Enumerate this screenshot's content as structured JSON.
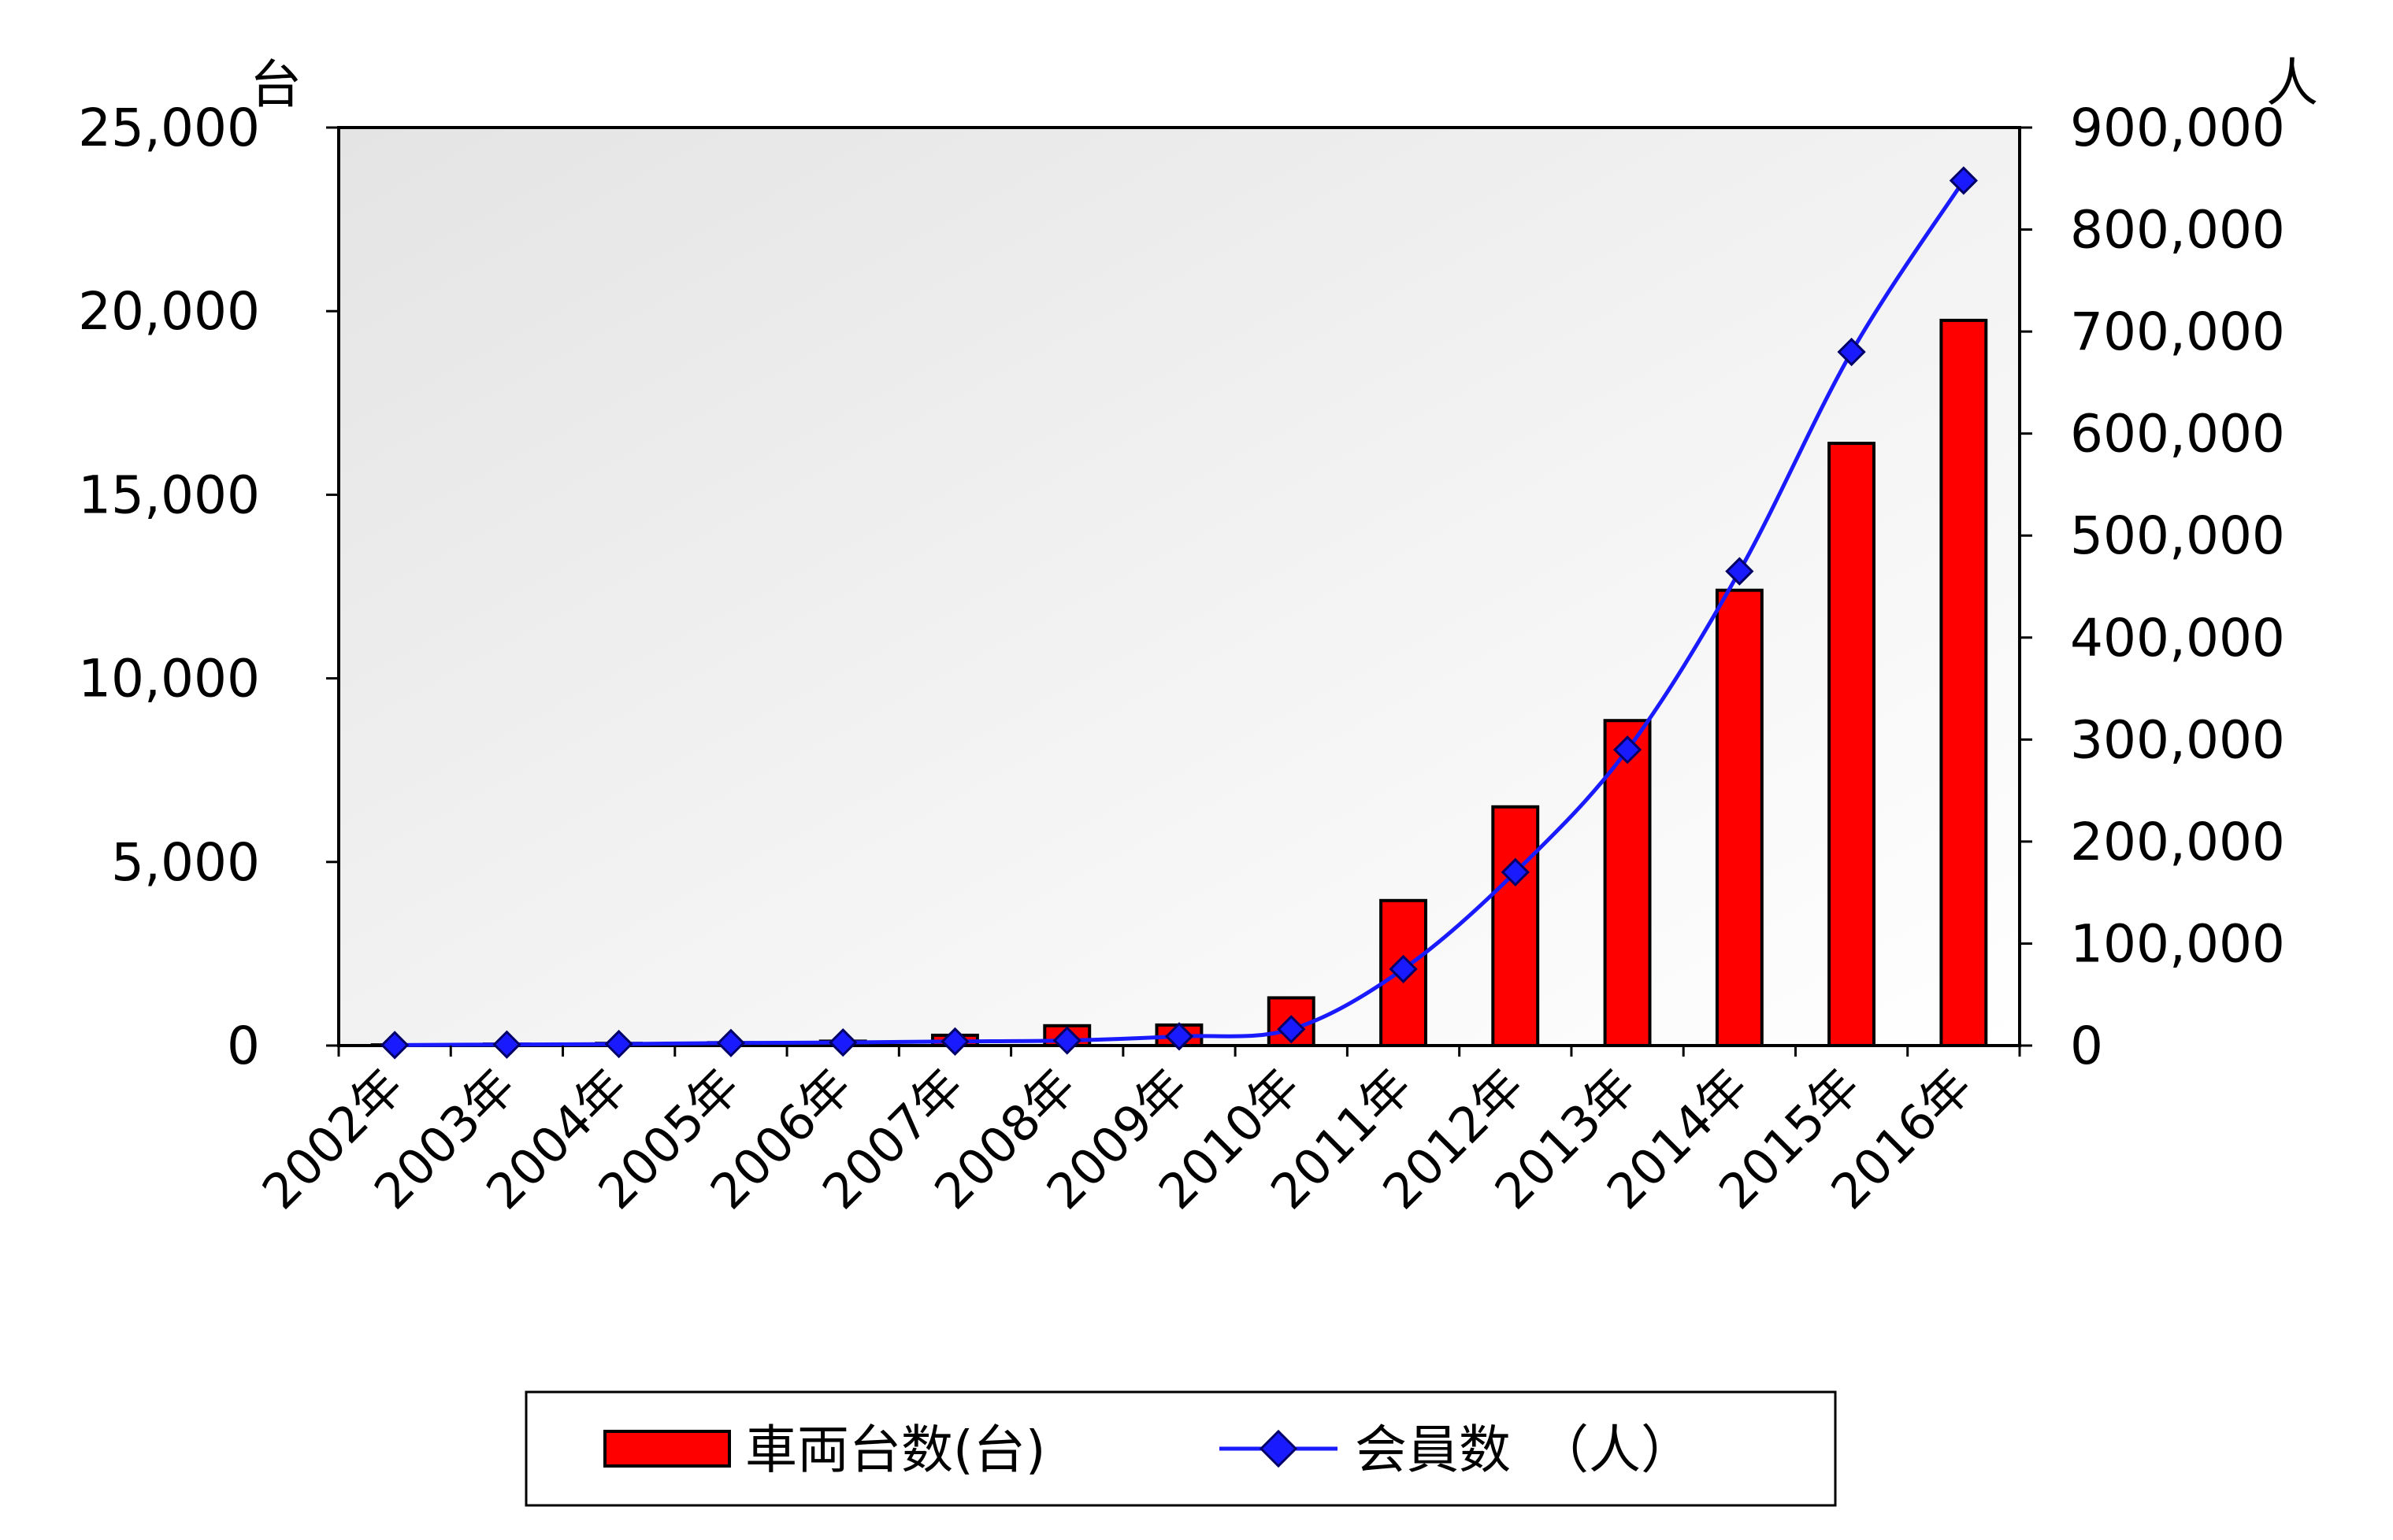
{
  "chart_data": {
    "type": "bar",
    "categories": [
      "2002年",
      "2003年",
      "2004年",
      "2005年",
      "2006年",
      "2007年",
      "2008年",
      "2009年",
      "2010年",
      "2011年",
      "2012年",
      "2013年",
      "2014年",
      "2015年",
      "2016年"
    ],
    "series": [
      {
        "name": "車両台数(台)",
        "type": "bar",
        "axis": "left",
        "color": "#ff0000",
        "values": [
          20,
          40,
          60,
          80,
          120,
          280,
          540,
          560,
          1300,
          3950,
          6500,
          8850,
          12400,
          16400,
          19750
        ]
      },
      {
        "name": "会員数　（人）",
        "type": "line",
        "axis": "right",
        "color": "#1a1aff",
        "marker": "diamond",
        "values": [
          500,
          1000,
          1500,
          2500,
          3000,
          4000,
          5000,
          9000,
          16000,
          75000,
          170000,
          290000,
          465000,
          680000,
          848000
        ]
      }
    ],
    "y_left": {
      "unit": "台",
      "ylim": [
        0,
        25000
      ],
      "ticks": [
        "0",
        "5,000",
        "10,000",
        "15,000",
        "20,000",
        "25,000"
      ]
    },
    "y_right": {
      "unit": "人",
      "ylim": [
        0,
        900000
      ],
      "ticks": [
        "0",
        "100,000",
        "200,000",
        "300,000",
        "400,000",
        "500,000",
        "600,000",
        "700,000",
        "800,000",
        "900,000"
      ]
    },
    "grid": false,
    "legend": "bottom",
    "plot_background": "#efefef"
  }
}
